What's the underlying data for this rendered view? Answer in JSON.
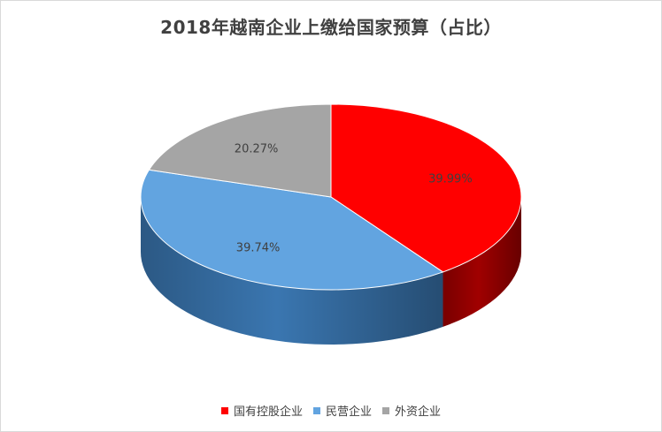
{
  "chart_data": {
    "type": "pie",
    "title": "2018年越南企业上缴给国家预算（占比）",
    "categories": [
      "国有控股企业",
      "民营企业",
      "外资企业"
    ],
    "values": [
      39.99,
      39.74,
      20.27
    ],
    "labels": [
      "39.99%",
      "39.74%",
      "20.27%"
    ],
    "colors": [
      "#FF0000",
      "#62A4E0",
      "#A5A5A5"
    ],
    "side_colors": [
      "#A00000",
      "#3A76B0",
      "#6E6E6E"
    ],
    "legend_position": "bottom",
    "style": "3d-pie"
  }
}
